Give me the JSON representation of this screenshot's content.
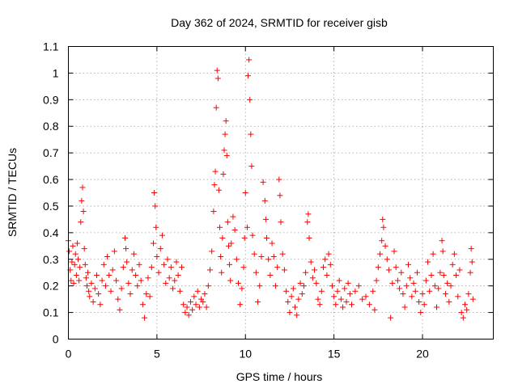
{
  "chart_data": {
    "type": "scatter",
    "title": "Day 362 of 2024, SRMTID for receiver gisb",
    "xlabel": "GPS time / hours",
    "ylabel": "SRMTID / TECUs",
    "xlim": [
      0,
      24
    ],
    "ylim": [
      0,
      1.1
    ],
    "x_ticks": [
      0,
      5,
      10,
      15,
      20
    ],
    "x_tick_labels": [
      "0",
      "5",
      "10",
      "15",
      "20"
    ],
    "y_ticks": [
      0,
      0.1,
      0.2,
      0.3,
      0.4,
      0.5,
      0.6,
      0.7,
      0.8,
      0.9,
      1.0,
      1.1
    ],
    "y_tick_labels": [
      "0",
      "0.1",
      "0.2",
      "0.3",
      "0.4",
      "0.5",
      "0.6",
      "0.7",
      "0.8",
      "0.9",
      "1",
      "1.1"
    ],
    "grid": true,
    "marker": "plus",
    "color": "#ff0000",
    "series": [
      {
        "name": "SRMTID",
        "points": [
          [
            0.0,
            0.37
          ],
          [
            0.05,
            0.33
          ],
          [
            0.1,
            0.26
          ],
          [
            0.15,
            0.22
          ],
          [
            0.2,
            0.29
          ],
          [
            0.25,
            0.35
          ],
          [
            0.3,
            0.21
          ],
          [
            0.35,
            0.28
          ],
          [
            0.4,
            0.32
          ],
          [
            0.45,
            0.24
          ],
          [
            0.5,
            0.36
          ],
          [
            0.55,
            0.3
          ],
          [
            0.6,
            0.22
          ],
          [
            0.65,
            0.27
          ],
          [
            0.7,
            0.44
          ],
          [
            0.75,
            0.52
          ],
          [
            0.8,
            0.57
          ],
          [
            0.85,
            0.48
          ],
          [
            0.9,
            0.34
          ],
          [
            0.95,
            0.28
          ],
          [
            1.0,
            0.23
          ],
          [
            1.05,
            0.2
          ],
          [
            1.1,
            0.25
          ],
          [
            1.15,
            0.18
          ],
          [
            1.2,
            0.16
          ],
          [
            1.3,
            0.21
          ],
          [
            1.4,
            0.14
          ],
          [
            1.5,
            0.19
          ],
          [
            1.6,
            0.24
          ],
          [
            1.7,
            0.17
          ],
          [
            1.8,
            0.13
          ],
          [
            1.9,
            0.22
          ],
          [
            2.0,
            0.28
          ],
          [
            2.1,
            0.2
          ],
          [
            2.2,
            0.31
          ],
          [
            2.3,
            0.24
          ],
          [
            2.4,
            0.18
          ],
          [
            2.5,
            0.26
          ],
          [
            2.6,
            0.33
          ],
          [
            2.7,
            0.22
          ],
          [
            2.8,
            0.15
          ],
          [
            2.9,
            0.11
          ],
          [
            3.0,
            0.19
          ],
          [
            3.1,
            0.27
          ],
          [
            3.2,
            0.38
          ],
          [
            3.25,
            0.34
          ],
          [
            3.3,
            0.29
          ],
          [
            3.4,
            0.21
          ],
          [
            3.5,
            0.17
          ],
          [
            3.6,
            0.26
          ],
          [
            3.7,
            0.32
          ],
          [
            3.8,
            0.24
          ],
          [
            3.9,
            0.2
          ],
          [
            4.0,
            0.28
          ],
          [
            4.1,
            0.22
          ],
          [
            4.2,
            0.13
          ],
          [
            4.3,
            0.08
          ],
          [
            4.4,
            0.17
          ],
          [
            4.5,
            0.23
          ],
          [
            4.6,
            0.16
          ],
          [
            4.7,
            0.27
          ],
          [
            4.8,
            0.36
          ],
          [
            4.85,
            0.55
          ],
          [
            4.9,
            0.5
          ],
          [
            4.95,
            0.42
          ],
          [
            5.0,
            0.31
          ],
          [
            5.1,
            0.25
          ],
          [
            5.2,
            0.34
          ],
          [
            5.3,
            0.39
          ],
          [
            5.4,
            0.28
          ],
          [
            5.5,
            0.21
          ],
          [
            5.6,
            0.3
          ],
          [
            5.7,
            0.23
          ],
          [
            5.8,
            0.27
          ],
          [
            5.9,
            0.19
          ],
          [
            6.0,
            0.22
          ],
          [
            6.1,
            0.29
          ],
          [
            6.2,
            0.24
          ],
          [
            6.3,
            0.18
          ],
          [
            6.4,
            0.27
          ],
          [
            6.5,
            0.13
          ],
          [
            6.6,
            0.1
          ],
          [
            6.7,
            0.12
          ],
          [
            6.8,
            0.09
          ],
          [
            6.9,
            0.14
          ],
          [
            7.0,
            0.11
          ],
          [
            7.1,
            0.16
          ],
          [
            7.2,
            0.13
          ],
          [
            7.3,
            0.18
          ],
          [
            7.4,
            0.12
          ],
          [
            7.5,
            0.15
          ],
          [
            7.6,
            0.14
          ],
          [
            7.7,
            0.17
          ],
          [
            7.8,
            0.12
          ],
          [
            7.9,
            0.2
          ],
          [
            8.0,
            0.26
          ],
          [
            8.1,
            0.33
          ],
          [
            8.2,
            0.48
          ],
          [
            8.25,
            0.58
          ],
          [
            8.3,
            0.63
          ],
          [
            8.35,
            0.87
          ],
          [
            8.4,
            1.01
          ],
          [
            8.45,
            0.98
          ],
          [
            8.5,
            0.56
          ],
          [
            8.55,
            0.42
          ],
          [
            8.6,
            0.31
          ],
          [
            8.65,
            0.25
          ],
          [
            8.7,
            0.38
          ],
          [
            8.75,
            0.62
          ],
          [
            8.8,
            0.71
          ],
          [
            8.85,
            0.77
          ],
          [
            8.9,
            0.82
          ],
          [
            8.95,
            0.69
          ],
          [
            9.0,
            0.44
          ],
          [
            9.05,
            0.35
          ],
          [
            9.1,
            0.28
          ],
          [
            9.15,
            0.22
          ],
          [
            9.2,
            0.36
          ],
          [
            9.3,
            0.46
          ],
          [
            9.4,
            0.41
          ],
          [
            9.5,
            0.3
          ],
          [
            9.6,
            0.21
          ],
          [
            9.7,
            0.13
          ],
          [
            9.8,
            0.19
          ],
          [
            9.9,
            0.27
          ],
          [
            9.95,
            0.38
          ],
          [
            10.0,
            0.55
          ],
          [
            10.1,
            0.42
          ],
          [
            10.15,
            0.99
          ],
          [
            10.2,
            1.05
          ],
          [
            10.25,
            0.9
          ],
          [
            10.3,
            0.77
          ],
          [
            10.35,
            0.65
          ],
          [
            10.4,
            0.39
          ],
          [
            10.5,
            0.32
          ],
          [
            10.6,
            0.25
          ],
          [
            10.7,
            0.14
          ],
          [
            10.8,
            0.2
          ],
          [
            10.9,
            0.31
          ],
          [
            11.0,
            0.59
          ],
          [
            11.1,
            0.52
          ],
          [
            11.15,
            0.45
          ],
          [
            11.2,
            0.38
          ],
          [
            11.3,
            0.3
          ],
          [
            11.4,
            0.24
          ],
          [
            11.5,
            0.36
          ],
          [
            11.6,
            0.31
          ],
          [
            11.7,
            0.2
          ],
          [
            11.8,
            0.27
          ],
          [
            11.9,
            0.6
          ],
          [
            11.95,
            0.54
          ],
          [
            12.0,
            0.44
          ],
          [
            12.1,
            0.32
          ],
          [
            12.2,
            0.26
          ],
          [
            12.3,
            0.18
          ],
          [
            12.4,
            0.14
          ],
          [
            12.5,
            0.1
          ],
          [
            12.6,
            0.16
          ],
          [
            12.7,
            0.19
          ],
          [
            12.8,
            0.12
          ],
          [
            12.9,
            0.09
          ],
          [
            13.0,
            0.15
          ],
          [
            13.1,
            0.21
          ],
          [
            13.2,
            0.17
          ],
          [
            13.3,
            0.2
          ],
          [
            13.4,
            0.25
          ],
          [
            13.5,
            0.44
          ],
          [
            13.55,
            0.47
          ],
          [
            13.6,
            0.38
          ],
          [
            13.7,
            0.29
          ],
          [
            13.8,
            0.23
          ],
          [
            13.9,
            0.26
          ],
          [
            14.0,
            0.21
          ],
          [
            14.1,
            0.15
          ],
          [
            14.2,
            0.13
          ],
          [
            14.3,
            0.18
          ],
          [
            14.4,
            0.27
          ],
          [
            14.5,
            0.3
          ],
          [
            14.6,
            0.24
          ],
          [
            14.7,
            0.32
          ],
          [
            14.8,
            0.28
          ],
          [
            14.9,
            0.2
          ],
          [
            15.0,
            0.16
          ],
          [
            15.1,
            0.13
          ],
          [
            15.2,
            0.18
          ],
          [
            15.3,
            0.22
          ],
          [
            15.4,
            0.15
          ],
          [
            15.5,
            0.12
          ],
          [
            15.6,
            0.19
          ],
          [
            15.7,
            0.14
          ],
          [
            15.8,
            0.21
          ],
          [
            15.9,
            0.17
          ],
          [
            16.0,
            0.13
          ],
          [
            16.2,
            0.18
          ],
          [
            16.4,
            0.2
          ],
          [
            16.6,
            0.15
          ],
          [
            16.8,
            0.16
          ],
          [
            17.0,
            0.13
          ],
          [
            17.2,
            0.18
          ],
          [
            17.3,
            0.11
          ],
          [
            17.4,
            0.22
          ],
          [
            17.5,
            0.27
          ],
          [
            17.6,
            0.32
          ],
          [
            17.7,
            0.37
          ],
          [
            17.75,
            0.45
          ],
          [
            17.8,
            0.42
          ],
          [
            17.9,
            0.35
          ],
          [
            18.0,
            0.3
          ],
          [
            18.1,
            0.26
          ],
          [
            18.2,
            0.08
          ],
          [
            18.3,
            0.21
          ],
          [
            18.4,
            0.33
          ],
          [
            18.5,
            0.27
          ],
          [
            18.6,
            0.22
          ],
          [
            18.7,
            0.19
          ],
          [
            18.8,
            0.25
          ],
          [
            18.9,
            0.17
          ],
          [
            19.0,
            0.12
          ],
          [
            19.1,
            0.2
          ],
          [
            19.2,
            0.28
          ],
          [
            19.3,
            0.23
          ],
          [
            19.4,
            0.16
          ],
          [
            19.5,
            0.21
          ],
          [
            19.6,
            0.18
          ],
          [
            19.7,
            0.25
          ],
          [
            19.8,
            0.14
          ],
          [
            19.9,
            0.1
          ],
          [
            20.0,
            0.17
          ],
          [
            20.1,
            0.13
          ],
          [
            20.2,
            0.22
          ],
          [
            20.3,
            0.29
          ],
          [
            20.4,
            0.18
          ],
          [
            20.5,
            0.24
          ],
          [
            20.6,
            0.32
          ],
          [
            20.7,
            0.2
          ],
          [
            20.8,
            0.12
          ],
          [
            20.9,
            0.19
          ],
          [
            21.0,
            0.25
          ],
          [
            21.1,
            0.37
          ],
          [
            21.15,
            0.33
          ],
          [
            21.2,
            0.24
          ],
          [
            21.3,
            0.17
          ],
          [
            21.4,
            0.21
          ],
          [
            21.5,
            0.14
          ],
          [
            21.6,
            0.2
          ],
          [
            21.7,
            0.28
          ],
          [
            21.8,
            0.32
          ],
          [
            21.9,
            0.24
          ],
          [
            22.0,
            0.16
          ],
          [
            22.1,
            0.26
          ],
          [
            22.2,
            0.1
          ],
          [
            22.3,
            0.08
          ],
          [
            22.4,
            0.13
          ],
          [
            22.5,
            0.11
          ],
          [
            22.6,
            0.17
          ],
          [
            22.7,
            0.25
          ],
          [
            22.75,
            0.34
          ],
          [
            22.8,
            0.29
          ],
          [
            22.85,
            0.15
          ]
        ]
      }
    ]
  }
}
